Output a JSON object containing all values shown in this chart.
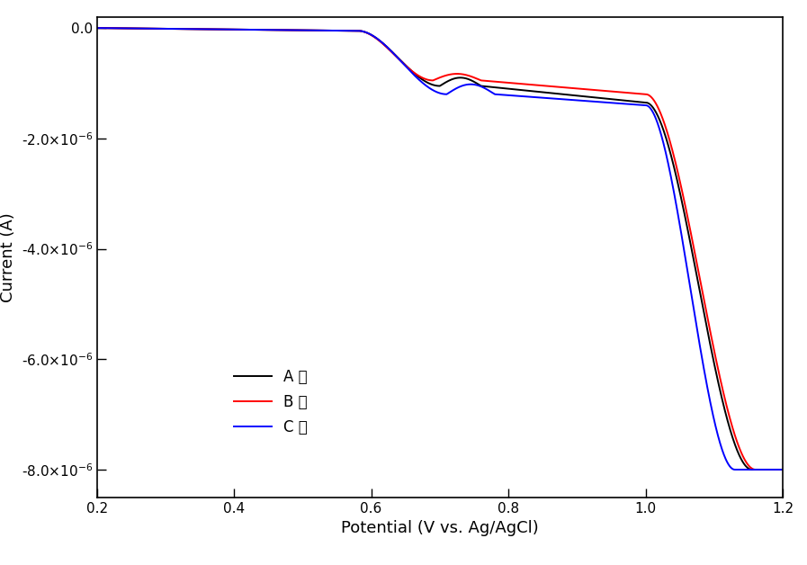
{
  "xlabel": "Potential (V vs. Ag/AgCl)",
  "ylabel": "Current (A)",
  "xlim": [
    0.2,
    1.2
  ],
  "ylim": [
    -8.5e-06,
    2e-07
  ],
  "yticks": [
    0.0,
    -2e-06,
    -4e-06,
    -6e-06,
    -8e-06
  ],
  "xticks": [
    0.2,
    0.4,
    0.6,
    0.8,
    1.0,
    1.2
  ],
  "legend_labels": [
    "A 사",
    "B 사",
    "C 사"
  ],
  "colors": [
    "black",
    "red",
    "blue"
  ],
  "background_color": "#ffffff",
  "linewidth": 1.4,
  "xlabel_fontsize": 13,
  "ylabel_fontsize": 13,
  "tick_fontsize": 11,
  "legend_fontsize": 12
}
